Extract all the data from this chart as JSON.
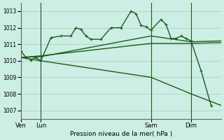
{
  "background_color": "#cceee4",
  "grid_color": "#aaccbb",
  "line_color": "#1a5c1a",
  "title": "Pression niveau de la mer( hPa )",
  "ylim": [
    1006.5,
    1013.5
  ],
  "yticks": [
    1007,
    1008,
    1009,
    1010,
    1011,
    1012,
    1013
  ],
  "xtick_labels": [
    "Ven",
    "Lun",
    "Sam",
    "Dim"
  ],
  "xtick_positions": [
    0,
    8,
    52,
    68
  ],
  "vlines": [
    0,
    8,
    52,
    68
  ],
  "xlim": [
    0,
    80
  ],
  "series1_x": [
    0,
    2,
    4,
    6,
    8,
    12,
    16,
    20,
    22,
    24,
    26,
    28,
    32,
    36,
    40,
    44,
    46,
    48,
    50,
    52,
    56,
    58,
    60,
    62,
    64,
    66,
    68,
    72,
    76
  ],
  "series1_y": [
    1010.6,
    1010.2,
    1010.05,
    1010.2,
    1010.0,
    1011.4,
    1011.5,
    1011.5,
    1012.0,
    1011.9,
    1011.5,
    1011.3,
    1011.3,
    1012.0,
    1012.0,
    1013.0,
    1012.85,
    1012.15,
    1012.05,
    1011.85,
    1012.5,
    1012.2,
    1011.35,
    1011.35,
    1011.5,
    1011.35,
    1011.2,
    1009.4,
    1007.3
  ],
  "series2_x": [
    0,
    8,
    52,
    68,
    80
  ],
  "series2_y": [
    1010.2,
    1010.25,
    1011.5,
    1011.15,
    1011.2
  ],
  "series3_x": [
    0,
    8,
    52,
    68,
    80
  ],
  "series3_y": [
    1010.2,
    1010.3,
    1011.05,
    1011.05,
    1011.1
  ],
  "series4_x": [
    0,
    8,
    52,
    68,
    80
  ],
  "series4_y": [
    1010.2,
    1010.0,
    1009.0,
    1008.0,
    1007.3
  ]
}
